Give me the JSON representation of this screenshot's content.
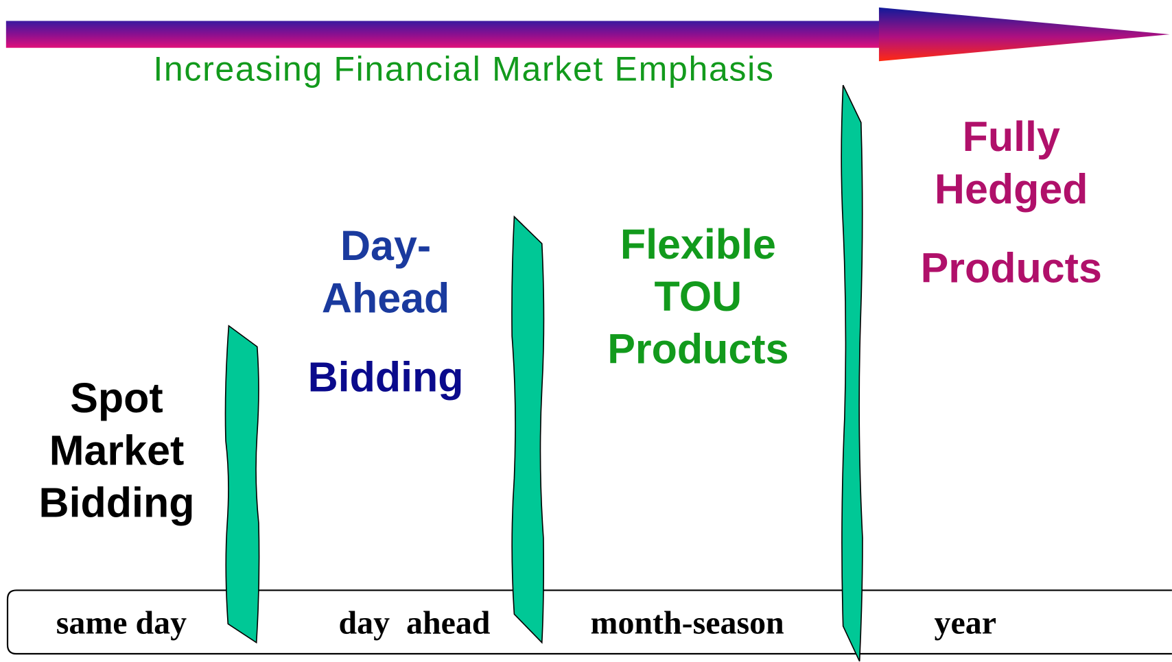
{
  "arrow": {
    "label": "Increasing Financial Market Emphasis"
  },
  "stages": [
    {
      "lines": [
        "Spot",
        "Market",
        "Bidding"
      ]
    },
    {
      "lines": [
        "Day-",
        "Ahead",
        "Bidding"
      ]
    },
    {
      "lines": [
        "Flexible",
        "TOU",
        "Products"
      ]
    },
    {
      "lines": [
        "Fully",
        "Hedged",
        "Products"
      ]
    }
  ],
  "timeline": [
    "same day",
    "day  ahead",
    "month-season",
    "year"
  ]
}
